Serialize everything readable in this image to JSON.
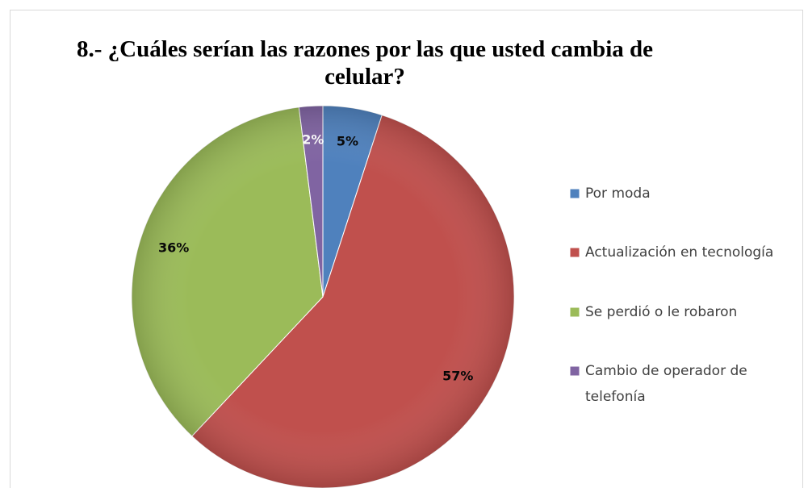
{
  "chart_data": {
    "type": "pie",
    "title": "8.- ¿Cuáles serían las razones por las que usted cambia de celular?",
    "categories": [
      "Por moda",
      "Actualización en tecnología",
      "Se perdió o le robaron",
      "Cambio de operador de telefonía"
    ],
    "values": [
      5,
      57,
      36,
      2
    ],
    "value_labels": [
      "5%",
      "57%",
      "36%",
      "2%"
    ],
    "colors": [
      "#4f81bd",
      "#c0504d",
      "#9bbb59",
      "#8064a2"
    ],
    "legend": "right"
  }
}
